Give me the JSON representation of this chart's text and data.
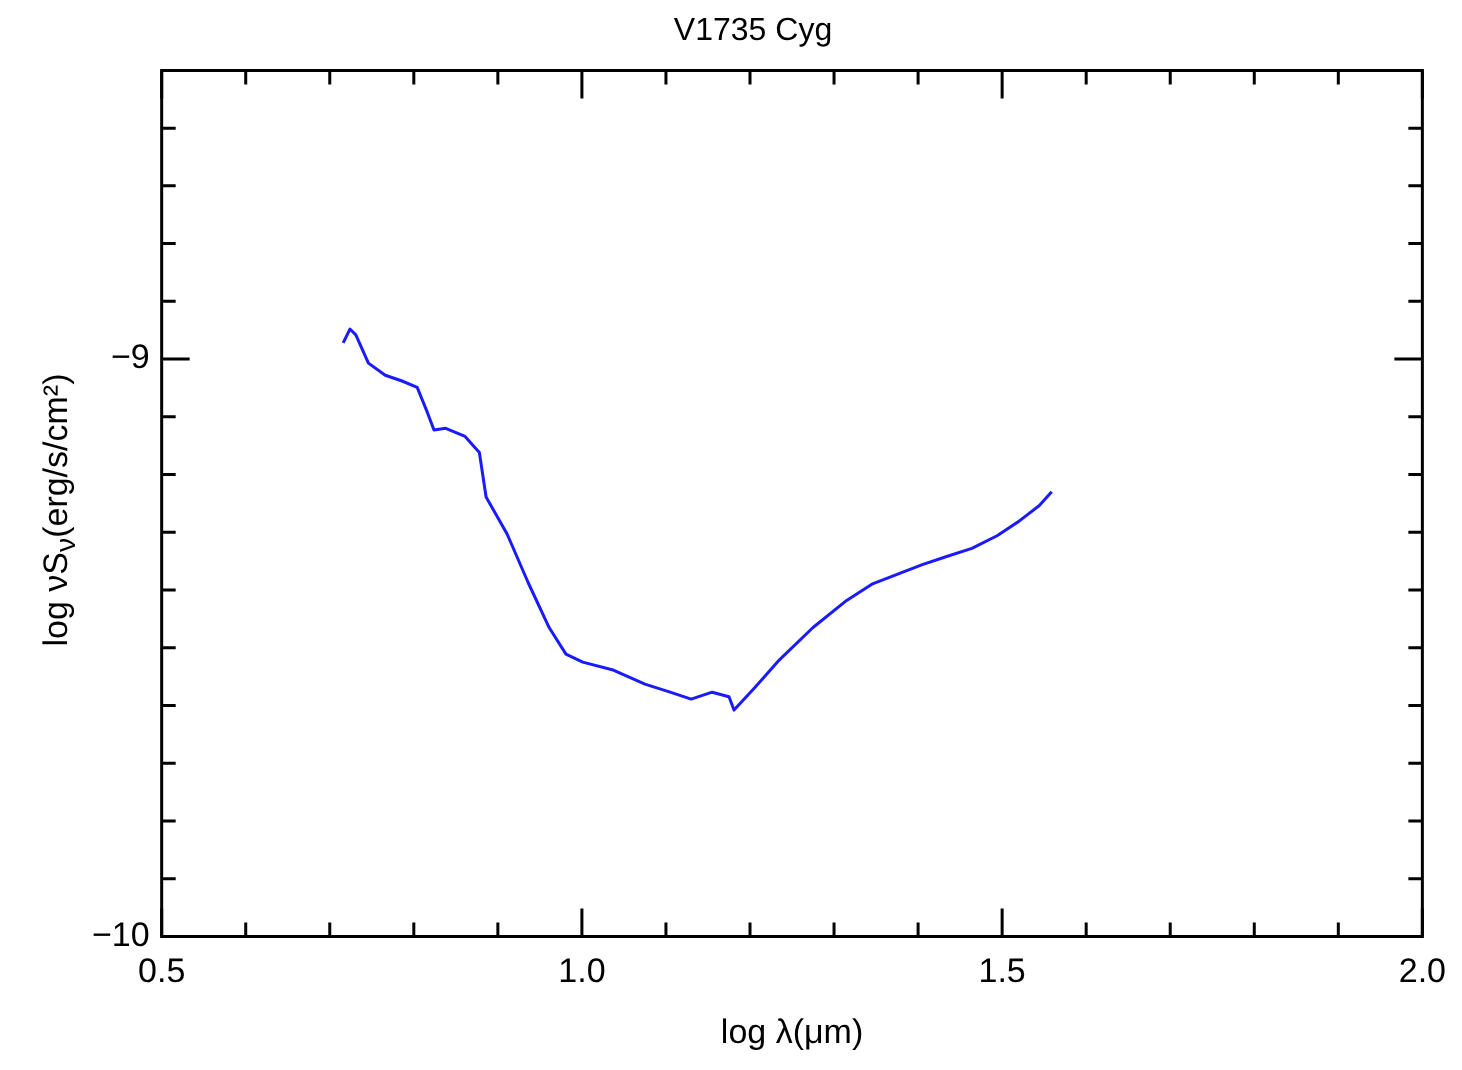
{
  "chart_data": {
    "type": "line",
    "title": "V1735 Cyg",
    "xlabel": "log λ(μm)",
    "ylabel": "log νS$_{ν}$(erg/s/cm²)",
    "x": [
      0.716,
      0.724,
      0.731,
      0.746,
      0.766,
      0.786,
      0.804,
      0.816,
      0.824,
      0.838,
      0.861,
      0.878,
      0.886,
      0.911,
      0.936,
      0.961,
      0.981,
      1.001,
      1.036,
      1.075,
      1.105,
      1.13,
      1.155,
      1.175,
      1.181,
      1.205,
      1.235,
      1.275,
      1.315,
      1.345,
      1.375,
      1.405,
      1.434,
      1.464,
      1.494,
      1.519,
      1.544,
      1.559
    ],
    "series": [
      {
        "color": "#1a1aff",
        "values": [
          -8.972,
          -8.948,
          -8.958,
          -9.007,
          -9.028,
          -9.038,
          -9.049,
          -9.092,
          -9.123,
          -9.12,
          -9.134,
          -9.162,
          -9.239,
          -9.303,
          -9.387,
          -9.465,
          -9.511,
          -9.525,
          -9.538,
          -9.563,
          -9.577,
          -9.589,
          -9.577,
          -9.585,
          -9.608,
          -9.57,
          -9.521,
          -9.465,
          -9.418,
          -9.39,
          -9.373,
          -9.356,
          -9.342,
          -9.328,
          -9.306,
          -9.282,
          -9.254,
          -9.23
        ]
      }
    ],
    "xlim": [
      0.5,
      2.0
    ],
    "xticks": [
      {
        "value": 0.5,
        "label": "0.5"
      },
      {
        "value": 0.6,
        "label": null
      },
      {
        "value": 0.7,
        "label": null
      },
      {
        "value": 0.8,
        "label": null
      },
      {
        "value": 0.9,
        "label": null
      },
      {
        "value": 1,
        "label": "1.0"
      },
      {
        "value": 1.1,
        "label": null
      },
      {
        "value": 1.2,
        "label": null
      },
      {
        "value": 1.3,
        "label": null
      },
      {
        "value": 1.4,
        "label": null
      },
      {
        "value": 1.5,
        "label": "1.5"
      },
      {
        "value": 1.6,
        "label": null
      },
      {
        "value": 1.7,
        "label": null
      },
      {
        "value": 1.8,
        "label": null
      },
      {
        "value": 1.9,
        "label": null
      },
      {
        "value": 2,
        "label": "2.0"
      }
    ],
    "ylim": [
      -10,
      -8.5
    ],
    "yticks": [
      -10,
      {
        "value": -9.9,
        "label": null
      },
      {
        "value": -9.8,
        "label": null
      },
      {
        "value": -9.7,
        "label": null
      },
      {
        "value": -9.6,
        "label": null
      },
      {
        "value": -9.5,
        "label": null
      },
      {
        "value": -9.4,
        "label": null
      },
      {
        "value": -9.3,
        "label": null
      },
      {
        "value": -9.2,
        "label": null
      },
      {
        "value": -9.1,
        "label": null
      },
      -9,
      {
        "value": -8.9,
        "label": null
      },
      {
        "value": -8.8,
        "label": null
      },
      {
        "value": -8.7,
        "label": null
      },
      {
        "value": -8.6,
        "label": null
      }
    ],
    "grid": false,
    "legend": false,
    "marker": "none",
    "line_style": "solid"
  }
}
